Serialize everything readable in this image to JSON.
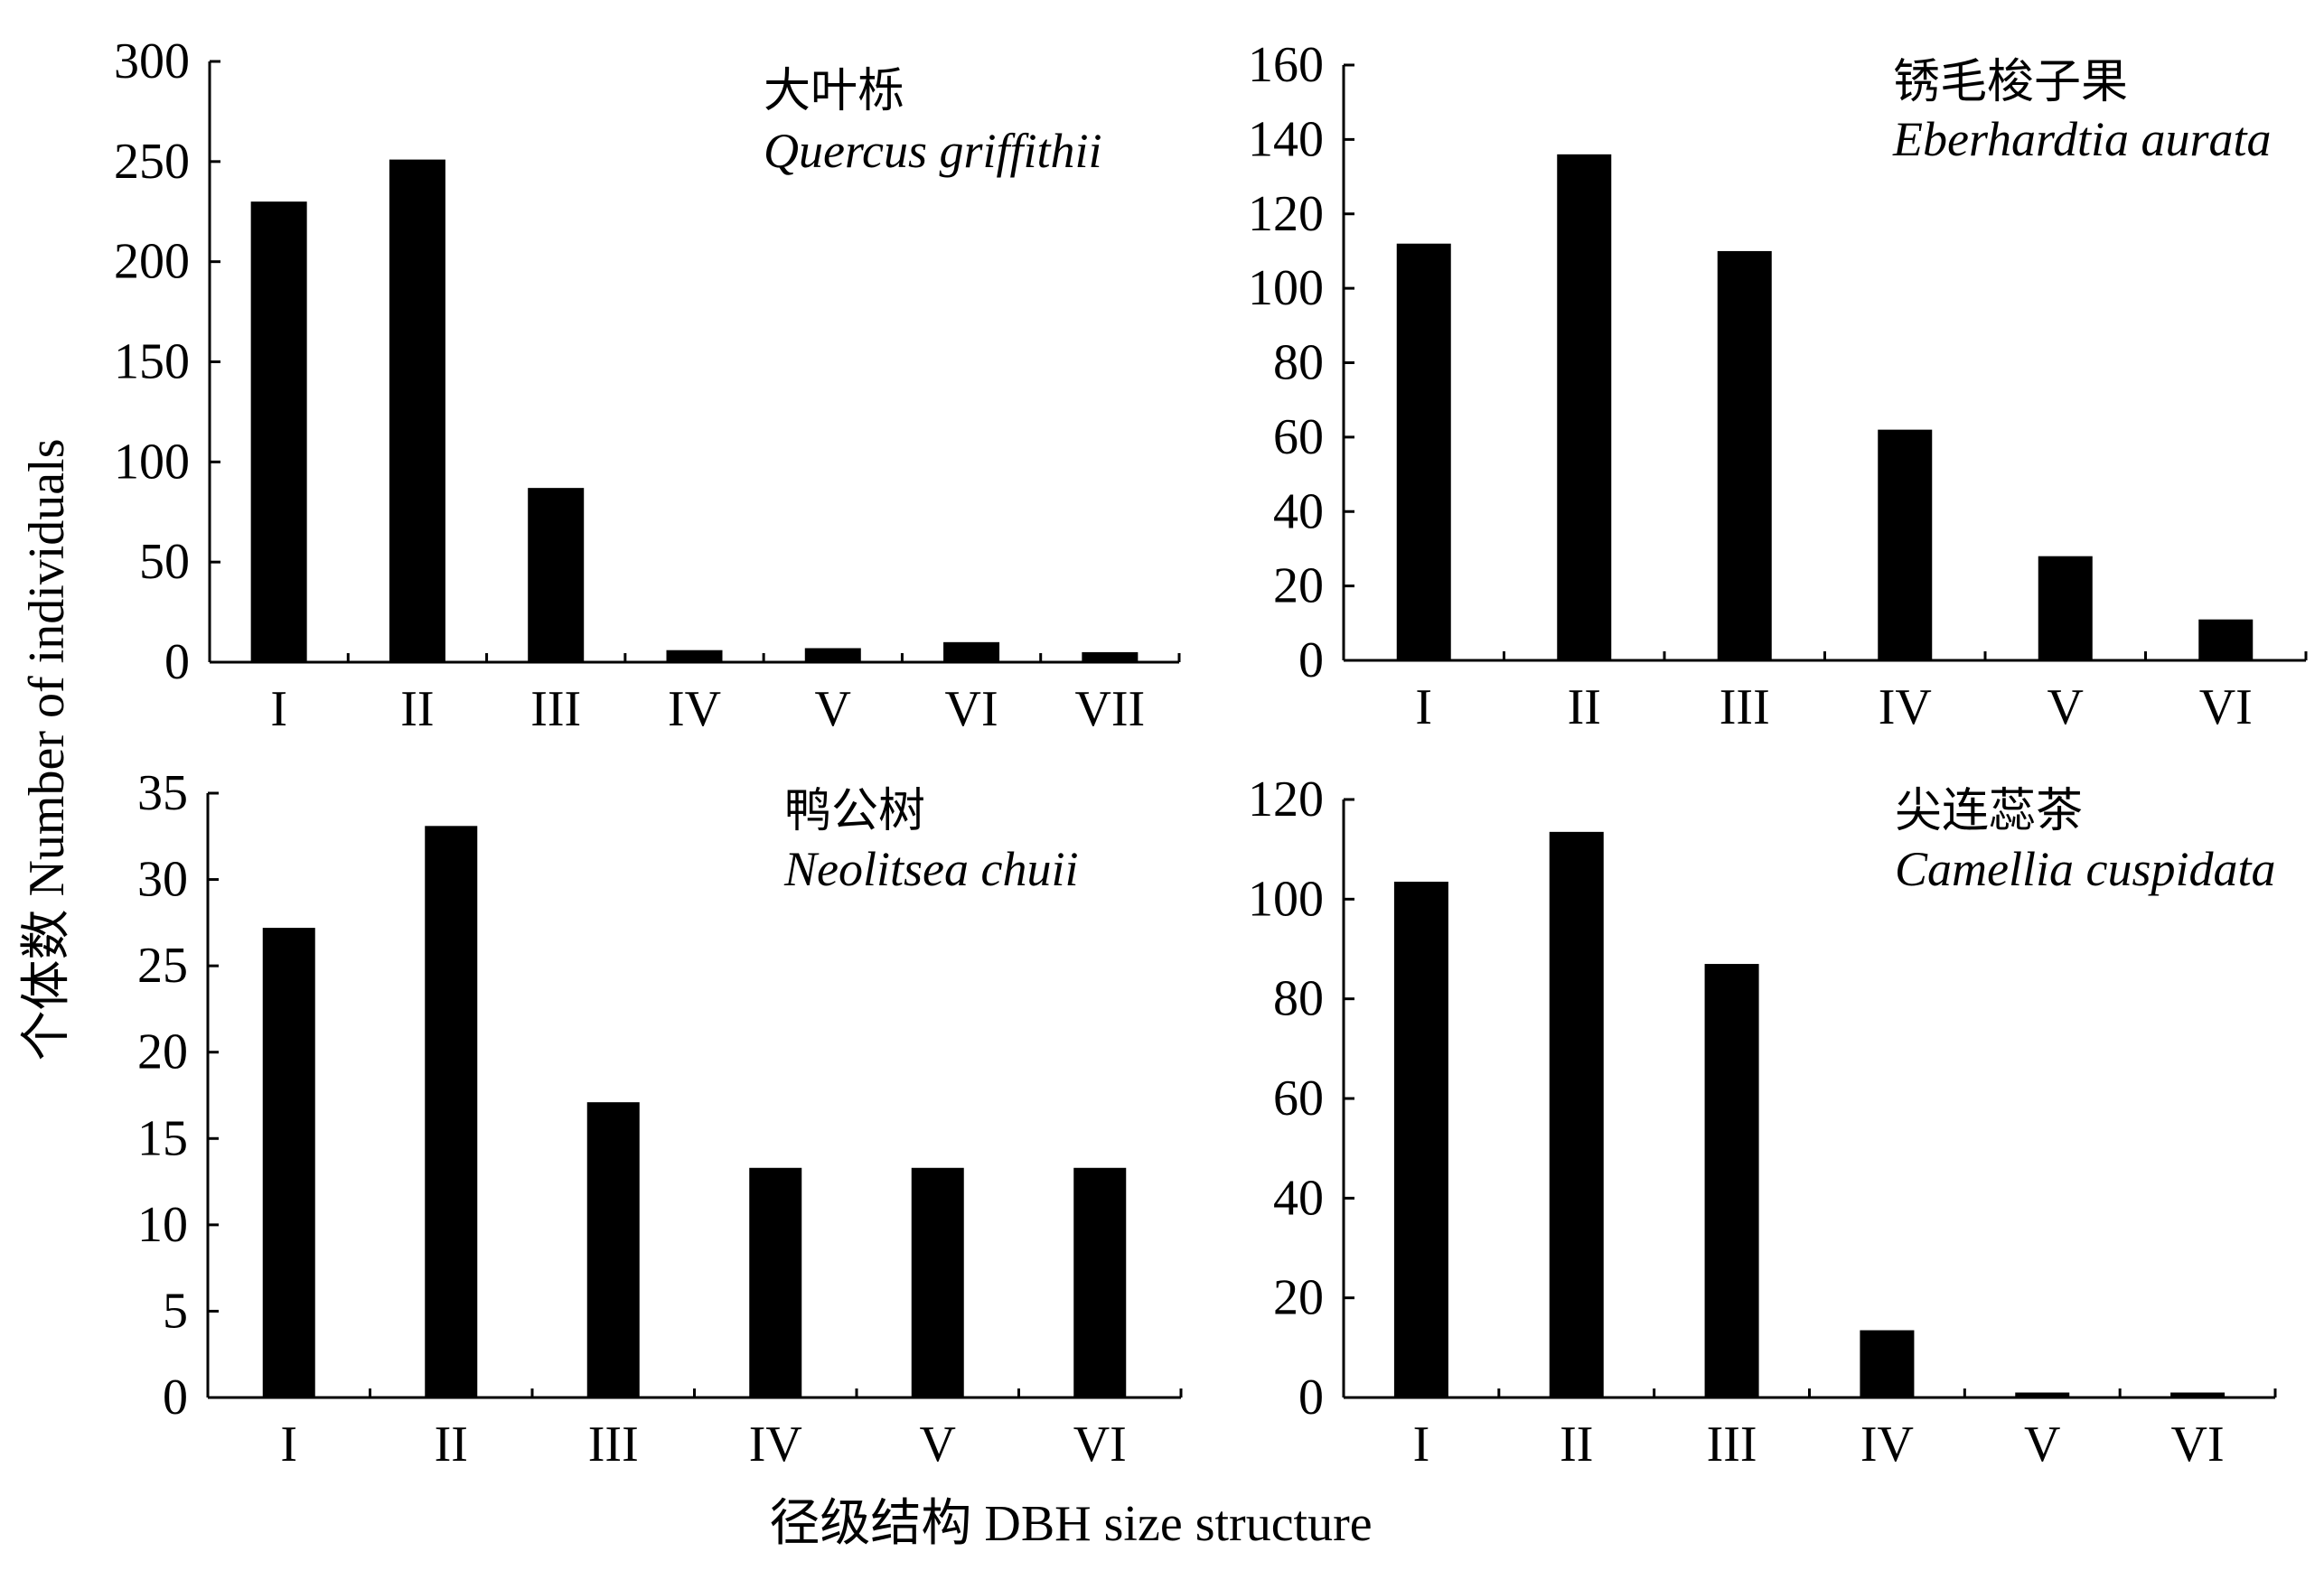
{
  "figure": {
    "ylabel": "个体数 Number of individuals",
    "xlabel": "径级结构 DBH size structure"
  },
  "chart_data": [
    {
      "type": "bar",
      "title_cn": "大叶栎",
      "title_latin": "Quercus griffithii",
      "categories": [
        "I",
        "II",
        "III",
        "IV",
        "V",
        "VI",
        "VII"
      ],
      "values": [
        230,
        251,
        87,
        6,
        7,
        10,
        5
      ],
      "ylim": [
        0,
        300
      ],
      "yticks": [
        "0",
        "50",
        "100",
        "150",
        "200",
        "250",
        "300"
      ],
      "grid": false,
      "bar_color": "#000000"
    },
    {
      "type": "bar",
      "title_cn": "锈毛梭子果",
      "title_latin": "Eberhardtia aurata",
      "categories": [
        "I",
        "II",
        "III",
        "IV",
        "V",
        "VI"
      ],
      "values": [
        112,
        136,
        110,
        62,
        28,
        11
      ],
      "ylim": [
        0,
        160
      ],
      "yticks": [
        "0",
        "20",
        "40",
        "60",
        "80",
        "100",
        "120",
        "140",
        "160"
      ],
      "grid": false,
      "bar_color": "#000000"
    },
    {
      "type": "bar",
      "title_cn": "鸭公树",
      "title_latin": "Neolitsea chuii",
      "categories": [
        "I",
        "II",
        "III",
        "IV",
        "V",
        "VI"
      ],
      "values": [
        27.2,
        33.1,
        17.1,
        13.3,
        13.3,
        13.3
      ],
      "ylim": [
        0,
        35
      ],
      "yticks": [
        "0",
        "5",
        "10",
        "15",
        "20",
        "25",
        "30",
        "35"
      ],
      "grid": false,
      "bar_color": "#000000"
    },
    {
      "type": "bar",
      "title_cn": "尖连蕊茶",
      "title_latin": "Camellia cuspidata",
      "categories": [
        "I",
        "II",
        "III",
        "IV",
        "V",
        "VI"
      ],
      "values": [
        103.5,
        113.5,
        87,
        13.5,
        1,
        1
      ],
      "ylim": [
        0,
        120
      ],
      "yticks": [
        "0",
        "20",
        "40",
        "60",
        "80",
        "100",
        "120"
      ],
      "grid": false,
      "bar_color": "#000000"
    }
  ]
}
